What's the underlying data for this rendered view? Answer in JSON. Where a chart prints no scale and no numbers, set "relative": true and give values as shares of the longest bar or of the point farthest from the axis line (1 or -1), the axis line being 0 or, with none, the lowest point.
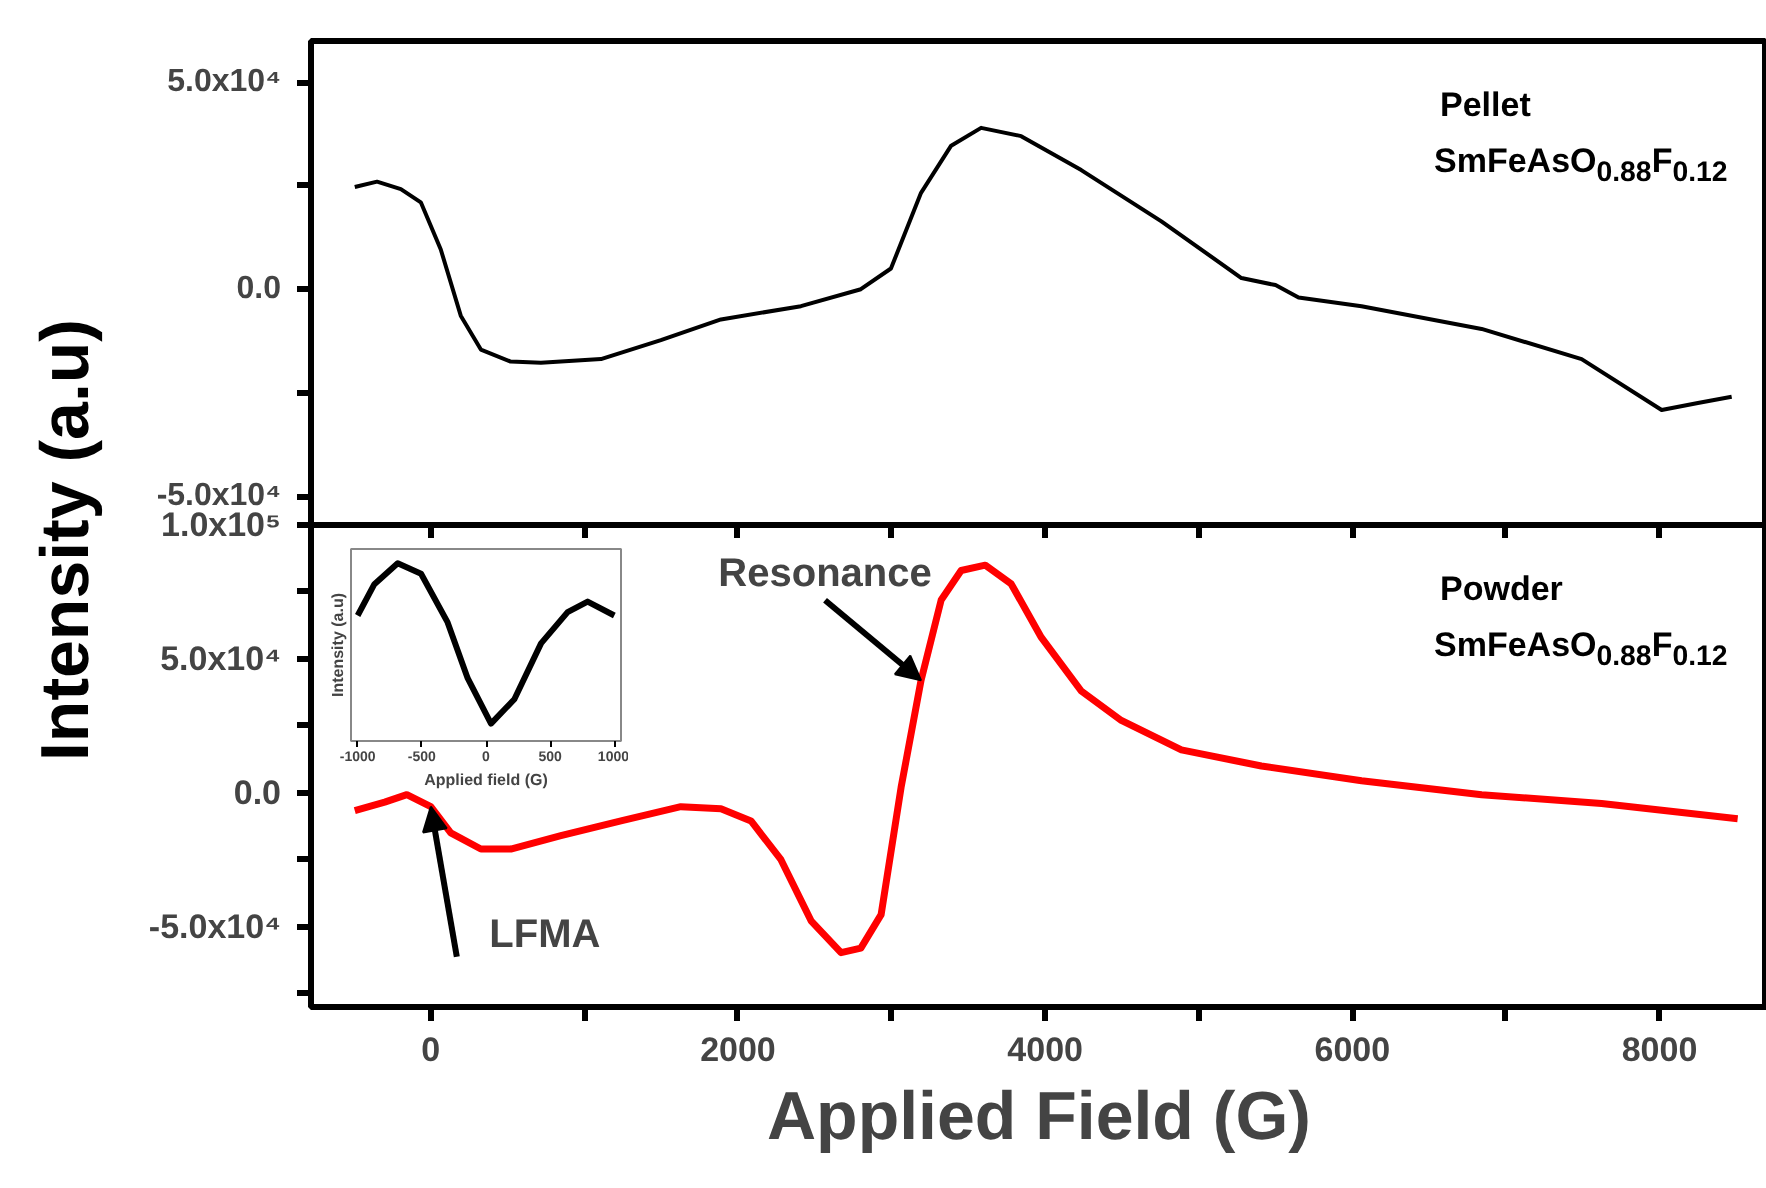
{
  "chart_data": [
    {
      "type": "line",
      "color": "#000000",
      "x": [
        -495,
        -350,
        -195,
        -65,
        65,
        195,
        326,
        520,
        717,
        1108,
        1498,
        1889,
        2410,
        2800,
        2996,
        3192,
        3388,
        3583,
        3844,
        4235,
        4757,
        5278,
        5500,
        5650,
        6060,
        6842,
        7493,
        8014,
        8250,
        8470
      ],
      "values": [
        24700,
        26000,
        24200,
        21000,
        9600,
        -6400,
        -14600,
        -17500,
        -17800,
        -16900,
        -12300,
        -7300,
        -4100,
        0,
        5000,
        23300,
        34700,
        39000,
        37000,
        28800,
        16400,
        2700,
        1000,
        -2000,
        -4100,
        -9600,
        -16900,
        -29200,
        -27500,
        -26000
      ],
      "xlim": [
        -780,
        8700
      ],
      "ylim": [
        -57000,
        60000
      ],
      "xticks": [
        0,
        {
          "value": 1000,
          "label": null
        },
        2000,
        {
          "value": 3000,
          "label": null
        },
        4000,
        {
          "value": 5000,
          "label": null
        },
        6000,
        {
          "value": 7000,
          "label": null
        },
        8000
      ],
      "yticks": [
        {
          "value": -50000,
          "label": "-5.0x10⁴"
        },
        {
          "value": -25000,
          "label": null
        },
        {
          "value": 0,
          "label": "0.0"
        },
        {
          "value": 25000,
          "label": null
        },
        {
          "value": 50000,
          "label": "5.0x10⁴"
        }
      ],
      "tick_labels": "y",
      "annotations": [
        "Pellet",
        "SmFeAsO$_{0.88}$F$_{0.12}$"
      ]
    },
    {
      "type": "line",
      "color": "#ff0000",
      "x": [
        -495,
        -300,
        -156,
        0,
        130,
        326,
        521,
        847,
        1238,
        1628,
        1889,
        2085,
        2280,
        2476,
        2671,
        2800,
        2932,
        3062,
        3192,
        3323,
        3453,
        3610,
        3779,
        3975,
        4235,
        4496,
        4887,
        5408,
        6060,
        6842,
        7623,
        8509
      ],
      "values": [
        -6700,
        -3500,
        -700,
        -5200,
        -15000,
        -21000,
        -21000,
        -16000,
        -10500,
        -5200,
        -6000,
        -10500,
        -25000,
        -47800,
        -59700,
        -58000,
        -45500,
        2000,
        42000,
        72000,
        83000,
        85000,
        78000,
        58000,
        38000,
        27000,
        16000,
        10000,
        4500,
        -700,
        -4000,
        -9700
      ],
      "xlim": [
        -780,
        8700
      ],
      "ylim": [
        -80000,
        100000
      ],
      "xticks": [
        0,
        {
          "value": 1000,
          "label": null
        },
        2000,
        {
          "value": 3000,
          "label": null
        },
        4000,
        {
          "value": 5000,
          "label": null
        },
        6000,
        {
          "value": 7000,
          "label": null
        },
        8000
      ],
      "yticks": [
        {
          "value": -75000,
          "label": null
        },
        {
          "value": -50000,
          "label": "-5.0x10⁴"
        },
        {
          "value": -25000,
          "label": null
        },
        {
          "value": 0,
          "label": "0.0"
        },
        {
          "value": 25000,
          "label": null
        },
        {
          "value": 50000,
          "label": "5.0x10⁴"
        },
        {
          "value": 75000,
          "label": null
        },
        {
          "value": 100000,
          "label": "1.0x10⁵"
        }
      ],
      "xlabel": "Applied Field (G)",
      "ylabel": "Intensity (a.u)",
      "annotations": [
        "Powder",
        "SmFeAsO$_{0.88}$F$_{0.12}$",
        {
          "text": "Resonance",
          "x": 3192,
          "y": 42000
        },
        {
          "text": "LFMA",
          "x": 0,
          "y": -5200
        }
      ]
    },
    {
      "type": "line",
      "color": "#000000",
      "relative": true,
      "x": [
        -1000,
        -870,
        -688,
        -506,
        -299,
        -143,
        39,
        221,
        429,
        636,
        792,
        1000
      ],
      "values": [
        0.706,
        0.882,
        1.0,
        0.941,
        0.667,
        0.353,
        0.098,
        0.235,
        0.549,
        0.725,
        0.784,
        0.706
      ],
      "xlim": [
        -1052,
        1052
      ],
      "xticks": [
        -1000,
        -500,
        0,
        500,
        1000
      ],
      "xlabel": "Applied field (G)",
      "ylabel": "Intensity (a.u)"
    }
  ]
}
